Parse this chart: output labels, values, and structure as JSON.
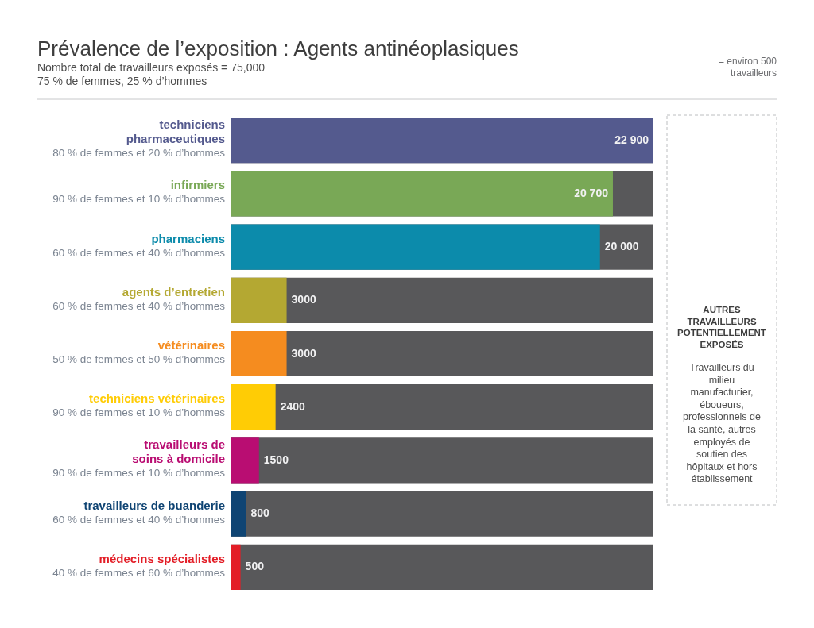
{
  "chart_data": {
    "type": "bar",
    "orientation": "horizontal",
    "title": "Prévalence de l’exposition : Agents antinéoplasiques",
    "subtitle": "Nombre total de travailleurs exposés = 75,000",
    "categories": [
      "techniciens pharmaceutiques",
      "infirmiers",
      "pharmaciens",
      "agents d’entretien",
      "vétérinaires",
      "techniciens vétérinaires",
      "travailleurs de soins à domicile",
      "travailleurs de buanderie",
      "médecins spécialistes"
    ],
    "values": [
      22900,
      20700,
      20000,
      3000,
      3000,
      2400,
      1500,
      800,
      500
    ],
    "value_labels": [
      "22 900",
      "20 700",
      "20 000",
      "3000",
      "3000",
      "2400",
      "1500",
      "800",
      "500"
    ],
    "colors": [
      "#545a8e",
      "#79a856",
      "#0c8bab",
      "#b4a832",
      "#f58c1f",
      "#ffcc05",
      "#b90d72",
      "#0f4473",
      "#e31e27"
    ],
    "tick_labels": "y",
    "annotations": [
      "80 % de femmes et 20 % d’hommes",
      "90 % de femmes et 10 % d’hommes",
      "60 % de femmes et 40 % d’hommes",
      "60 % de femmes et 40 % d’hommes",
      "50 % de femmes et 50 % d’hommes",
      "90 % de femmes et 10 % d’hommes",
      "90 % de femmes et 10 % d’hommes",
      "60 % de femmes et 40 % d’hommes",
      "40 % de femmes et 60 % d’hommes",
      "75 % de femmes, 25 % d’hommes",
      "= environ 500 travailleurs",
      "AUTRES TRAVAILLEURS POTENTIELLEMENT EXPOSÉS",
      "Travailleurs du milieu manufacturier, éboueurs, professionnels de la santé, autres employés de soutien des hôpitaux et hors établissement"
    ]
  }
}
